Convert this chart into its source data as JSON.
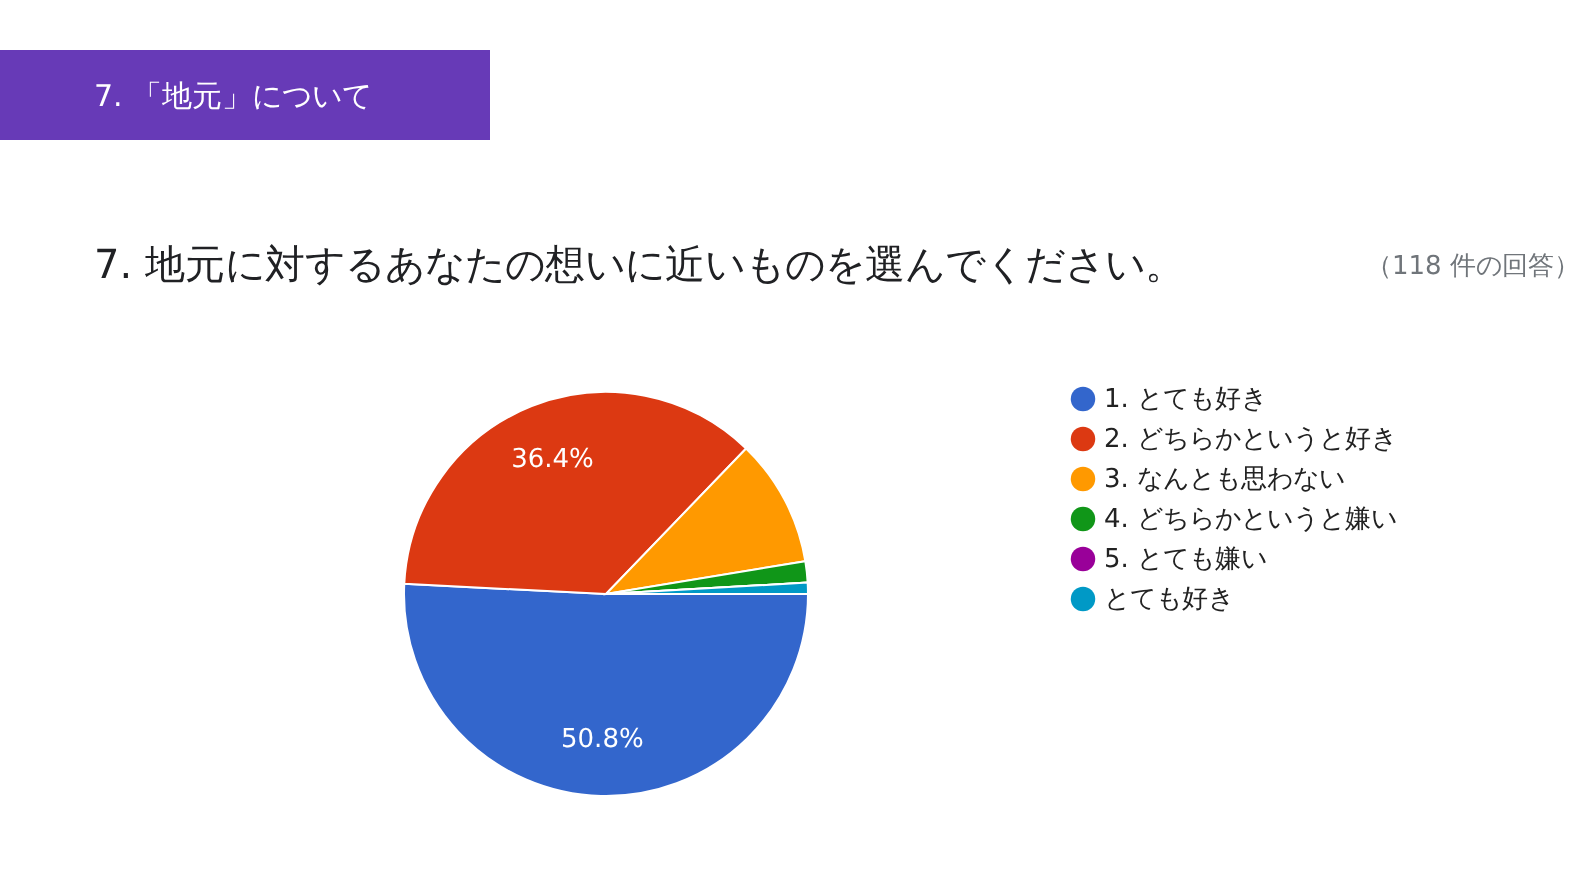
{
  "chart_data": {
    "type": "pie",
    "title": "7.  地元に対するあなたの想いに近いものを選んでください。",
    "subtitle": "（118 件の回答）",
    "annotations": [
      "7.  「地元」について"
    ],
    "categories": [
      "1.  とても好き",
      "2.  どちらかというと好き",
      "3.  なんとも思わない",
      "4.  どちらかというと嫌い",
      "5.  とても嫌い",
      "とても好き"
    ],
    "values": [
      50.8,
      36.4,
      10.2,
      1.7,
      0,
      0.9
    ],
    "colors": [
      "#3366cc",
      "#dc3912",
      "#ff9900",
      "#109618",
      "#990099",
      "#0099c6"
    ],
    "value_labels": [
      "50.8%",
      "36.4%",
      null,
      null,
      null,
      null
    ],
    "legend": "right"
  }
}
